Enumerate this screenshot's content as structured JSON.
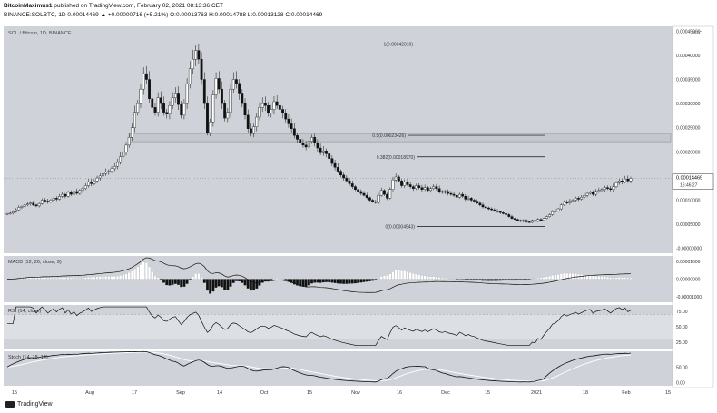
{
  "header": {
    "line1_prefix": "BitcoinMaximus1",
    "line1_rest": "published on TradingView.com, February 02, 2021 08:13:36 CET",
    "line2": "BINANCE:SOLBTC, 1D 0.00014469 ▲ +0.00000716 (+5.21%) O:0.00013763 H:0.00014788 L:0.00013128 C:0.00014469"
  },
  "footer": {
    "brand": "TradingView"
  },
  "chart_data": {
    "type": "candlestick",
    "title": "SOL / Bitcoin, 1D, BINANCE",
    "currency_label": "BTC",
    "price_axis": {
      "ticks": [
        "0.00045000",
        "0.00040000",
        "0.00035000",
        "0.00030000",
        "0.00025000",
        "0.00020000",
        "0.00015000",
        "0.00010000",
        "0.00005000",
        "-0.00000000"
      ],
      "ylim": [
        -1e-05,
        0.00046
      ],
      "current_price": "0.00014469",
      "countdown": "16:46:27"
    },
    "x_ticks": [
      "15",
      "Aug",
      "17",
      "Sep",
      "14",
      "Oct",
      "15",
      "Nov",
      "16",
      "Dec",
      "15",
      "2021",
      "18",
      "Feb",
      "15"
    ],
    "fib_levels": [
      {
        "label": "1(0.00042310)",
        "value": 0.0004231
      },
      {
        "label": "0.5(0.00023426)",
        "value": 0.00023426
      },
      {
        "label": "0.382(0.00018970)",
        "value": 0.0001897
      },
      {
        "label": "0(0.00004543)",
        "value": 4.543e-05
      }
    ],
    "zone": {
      "low": 0.000221,
      "high": 0.000238
    },
    "price_closes": [
      7.2e-05,
      7.3e-05,
      7.6e-05,
      8e-05,
      8.5e-05,
      8.7e-05,
      9e-05,
      9.2e-05,
      9.4e-05,
      9e-05,
      8.8e-05,
      9.3e-05,
      0.0001,
      9.8e-05,
      9.6e-05,
      0.0001,
      0.000104,
      0.000102,
      0.000108,
      0.000112,
      0.000108,
      0.000116,
      0.000112,
      0.000118,
      0.000114,
      0.00012,
      0.000124,
      0.00013,
      0.000138,
      0.000134,
      0.00014,
      0.000146,
      0.00015,
      0.000155,
      0.000158,
      0.00016,
      0.000165,
      0.00017,
      0.000178,
      0.00019,
      0.0002,
      0.000214,
      0.00023,
      0.00025,
      0.000282,
      0.0003,
      0.00033,
      0.000362,
      0.00035,
      0.00031,
      0.000292,
      0.000282,
      0.000312,
      0.0003,
      0.000282,
      0.000278,
      0.000296,
      0.000312,
      0.00032,
      0.000298,
      0.000276,
      0.0003,
      0.00034,
      0.000372,
      0.000392,
      0.00041,
      0.000392,
      0.00035,
      0.0003,
      0.00024,
      0.000262,
      0.000318,
      0.000352,
      0.00033,
      0.0003,
      0.00027,
      0.000282,
      0.00033,
      0.00035,
      0.000342,
      0.00032,
      0.0003,
      0.000276,
      0.000248,
      0.000238,
      0.000252,
      0.000272,
      0.000292,
      0.0003,
      0.000296,
      0.00028,
      0.000288,
      0.000304,
      0.000296,
      0.000288,
      0.00028,
      0.000268,
      0.000258,
      0.000248,
      0.000234,
      0.000226,
      0.000218,
      0.000214,
      0.00021,
      0.000222,
      0.00023,
      0.000218,
      0.000208,
      0.000198,
      0.000202,
      0.000196,
      0.000186,
      0.000176,
      0.000168,
      0.00016,
      0.000152,
      0.000146,
      0.00014,
      0.000134,
      0.000128,
      0.000122,
      0.000118,
      0.000114,
      0.00011,
      0.000105,
      0.0001,
      9.7e-05,
      9.5e-05,
      0.00011,
      0.00012,
      0.000112,
      0.000104,
      0.000122,
      0.000142,
      0.000148,
      0.00014,
      0.00013,
      0.000138,
      0.000132,
      0.000128,
      0.000124,
      0.00013,
      0.000126,
      0.000122,
      0.000126,
      0.00012,
      0.000124,
      0.000128,
      0.000124,
      0.000118,
      0.000116,
      0.000118,
      0.000114,
      0.000112,
      0.00011,
      0.000106,
      0.000112,
      0.000108,
      0.000102,
      0.000104,
      0.0001,
      9.8e-05,
      9.4e-05,
      9e-05,
      8.6e-05,
      8.4e-05,
      8.2e-05,
      8e-05,
      7.8e-05,
      7.6e-05,
      7.4e-05,
      7.2e-05,
      7e-05,
      6.6e-05,
      6.2e-05,
      6e-05,
      5.8e-05,
      5.6e-05,
      5.8e-05,
      5.5e-05,
      5.4e-05,
      5.8e-05,
      5.6e-05,
      6e-05,
      5.8e-05,
      6.2e-05,
      6.6e-05,
      7e-05,
      7.6e-05,
      7.8e-05,
      8.2e-05,
      9e-05,
      9.6e-05,
      9.4e-05,
      9.8e-05,
      0.0001,
      0.000104,
      0.000102,
      0.000106,
      0.00011,
      0.000114,
      0.000116,
      0.000112,
      0.000118,
      0.00012,
      0.000122,
      0.000126,
      0.000124,
      0.000122,
      0.000128,
      0.000136,
      0.00014,
      0.000138,
      0.000144,
      0.00014,
      0.000145
    ],
    "macd": {
      "label": "MACD (12, 26, close, 9)",
      "ticks": [
        "0.00001000",
        "0.00000000",
        "-0.00001000"
      ],
      "ylim": [
        -1.3e-05,
        1.3e-05
      ]
    },
    "rsi": {
      "label": "RSI (14, close)",
      "ticks": [
        "75.00",
        "50.00",
        "25.00"
      ],
      "ylim": [
        15,
        85
      ]
    },
    "stoch": {
      "label": "Stoch (14, 18, 14)",
      "ticks": [
        "50.00",
        "0.00"
      ],
      "ylim": [
        -10,
        100
      ]
    }
  }
}
